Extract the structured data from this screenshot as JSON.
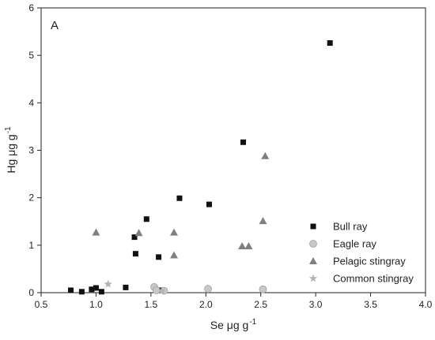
{
  "chart_data": {
    "type": "scatter",
    "panel_label": "A",
    "xlabel": "Se μg g",
    "xlabel_sup": "-1",
    "ylabel": "Hg μg g",
    "ylabel_sup": "-1",
    "xlim": [
      0.5,
      4.0
    ],
    "ylim": [
      0,
      6
    ],
    "xticks": [
      0.5,
      1.0,
      1.5,
      2.0,
      2.5,
      3.0,
      3.5,
      4.0
    ],
    "xtick_labels": [
      "0.5",
      "1.0",
      "1.5",
      "2.0",
      "2.5",
      "3.0",
      "3.5",
      "4.0"
    ],
    "yticks": [
      0,
      1,
      2,
      3,
      4,
      5,
      6
    ],
    "ytick_labels": [
      "0",
      "1",
      "2",
      "3",
      "4",
      "5",
      "6"
    ],
    "grid": false,
    "legend_position": "bottom-right",
    "series": [
      {
        "name": "Bull ray",
        "marker": "square",
        "color": "#111111",
        "x": [
          0.77,
          0.87,
          0.96,
          1.0,
          1.05,
          1.27,
          1.35,
          1.36,
          1.46,
          1.57,
          1.58,
          1.76,
          2.03,
          2.34,
          3.13
        ],
        "y": [
          0.05,
          0.02,
          0.07,
          0.1,
          0.02,
          0.11,
          1.17,
          0.82,
          1.55,
          0.75,
          0.05,
          1.99,
          1.86,
          3.17,
          5.26
        ]
      },
      {
        "name": "Eagle ray",
        "marker": "circle",
        "color": "#c8c8c8",
        "x": [
          1.53,
          1.55,
          1.62,
          2.02,
          2.52
        ],
        "y": [
          0.12,
          0.05,
          0.04,
          0.08,
          0.07
        ]
      },
      {
        "name": "Pelagic stingray",
        "marker": "triangle",
        "color": "#808080",
        "x": [
          1.0,
          1.39,
          1.71,
          1.71,
          2.33,
          2.39,
          2.52,
          2.54
        ],
        "y": [
          1.27,
          1.26,
          1.27,
          0.79,
          0.98,
          0.98,
          1.51,
          2.88
        ]
      },
      {
        "name": "Common stingray",
        "marker": "star",
        "color": "#b4b4b4",
        "x": [
          1.11,
          1.6
        ],
        "y": [
          0.18,
          0.04
        ]
      }
    ]
  }
}
